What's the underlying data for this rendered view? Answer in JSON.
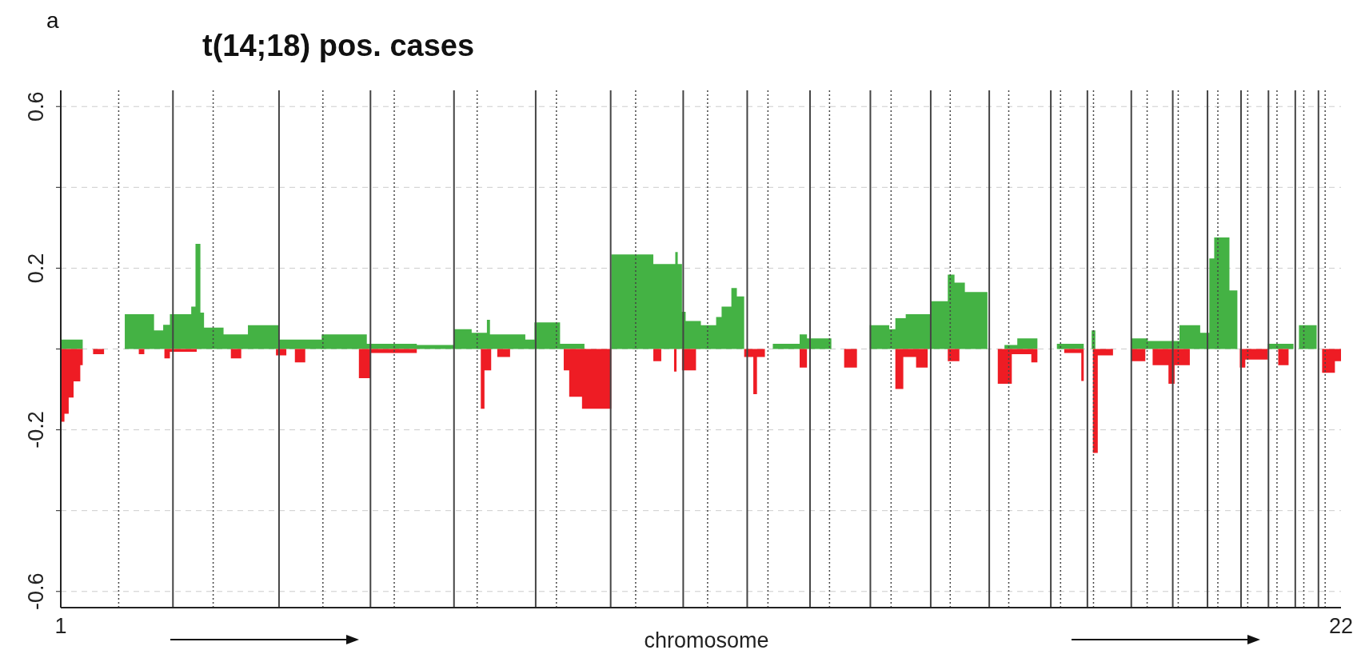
{
  "chart_data": {
    "type": "area",
    "title": "t(14;18) pos. cases",
    "xlabel": "chromosome",
    "annotations": [
      "a"
    ],
    "xlim": [
      1,
      22
    ],
    "xticks": [
      1,
      22
    ],
    "ylim": [
      -0.64,
      0.64
    ],
    "yticks": [
      {
        "value": -0.6,
        "label": "-0.6"
      },
      {
        "value": -0.4,
        "label": null
      },
      {
        "value": -0.2,
        "label": "-0.2"
      },
      {
        "value": 0,
        "label": null
      },
      {
        "value": 0.2,
        "label": "0.2"
      },
      {
        "value": 0.4,
        "label": null
      },
      {
        "value": 0.6,
        "label": "0.6"
      }
    ],
    "grid": "y",
    "series": [
      {
        "color": "#44b244",
        "x": [
          1,
          1.36,
          2.05,
          2.53,
          2.68,
          2.79,
          3.14,
          3.21,
          3.29,
          3.35,
          3.67,
          4.07,
          4.57,
          5.28,
          6.02,
          6.84,
          7.45,
          7.74,
          7.99,
          8.04,
          8.62,
          8.77,
          9.19,
          9.59,
          10.03,
          10.72,
          11.08,
          11.12,
          11.19,
          11.25,
          11.5,
          11.75,
          11.84,
          12.0,
          12.09,
          12.21,
          12.68,
          13.12,
          13.24,
          13.64,
          14.27,
          14.59,
          14.69,
          14.86,
          15.26,
          15.55,
          15.66,
          15.83,
          16.2,
          16.48,
          16.69,
          17.02,
          17.34,
          17.78,
          17.91,
          17.97,
          18.56,
          18.83,
          19.35,
          19.69,
          19.84,
          19.92,
          20.17,
          20.3,
          20.8,
          21.22,
          21.31,
          21.6,
          22
        ],
        "values": [
          0.023,
          0,
          0.086,
          0.046,
          0.06,
          0.086,
          0.105,
          0.26,
          0.09,
          0.053,
          0.036,
          0.059,
          0.023,
          0.036,
          0.013,
          0.01,
          0.049,
          0.04,
          0.072,
          0.036,
          0.023,
          0.066,
          0.013,
          0,
          0.234,
          0.21,
          0.24,
          0.21,
          0.092,
          0.069,
          0.059,
          0.079,
          0.105,
          0.151,
          0.13,
          0,
          0.013,
          0.036,
          0.026,
          0,
          0.059,
          0.049,
          0.076,
          0.086,
          0.118,
          0.184,
          0.164,
          0.141,
          0,
          0.01,
          0.026,
          0,
          0.013,
          0,
          0.046,
          0,
          0.026,
          0.02,
          0.059,
          0.04,
          0.224,
          0.276,
          0.145,
          0,
          0.013,
          0,
          0.059,
          0,
          0
        ]
      },
      {
        "color": "#ee1c24",
        "x": [
          1,
          1.06,
          1.13,
          1.21,
          1.32,
          1.36,
          1.53,
          1.71,
          2.28,
          2.37,
          2.7,
          2.79,
          3.23,
          3.79,
          3.96,
          4.53,
          4.7,
          4.84,
          5.01,
          5.89,
          6.08,
          6.84,
          7.89,
          7.95,
          8.06,
          8.16,
          8.37,
          9.25,
          9.34,
          9.55,
          10.03,
          10.72,
          10.85,
          11.06,
          11.1,
          11.19,
          11.42,
          12.21,
          12.36,
          12.42,
          12.55,
          13.12,
          13.24,
          13.85,
          14.06,
          14.69,
          14.82,
          15.03,
          15.22,
          15.55,
          15.74,
          16.37,
          16.6,
          16.92,
          17.02,
          17.46,
          17.74,
          17.78,
          17.93,
          18.01,
          18.26,
          18.56,
          18.79,
          18.91,
          19.17,
          19.27,
          19.52,
          20.34,
          20.43,
          20.8,
          20.97,
          21.14,
          21.69,
          21.9,
          22
        ],
        "values": [
          -0.18,
          -0.16,
          -0.12,
          -0.08,
          -0.04,
          0,
          -0.013,
          0,
          -0.013,
          0,
          -0.023,
          -0.007,
          0,
          -0.023,
          0,
          -0.016,
          0,
          -0.033,
          0,
          -0.072,
          -0.01,
          0,
          -0.148,
          -0.053,
          0,
          -0.02,
          0,
          -0.053,
          -0.118,
          -0.148,
          0,
          -0.03,
          0,
          -0.056,
          0,
          -0.053,
          0,
          -0.02,
          -0.112,
          -0.02,
          0,
          -0.046,
          0,
          -0.046,
          0,
          -0.099,
          -0.02,
          -0.046,
          0,
          -0.03,
          0,
          -0.086,
          -0.013,
          -0.033,
          0,
          -0.01,
          -0.079,
          0,
          -0.257,
          -0.016,
          0,
          -0.03,
          0,
          -0.04,
          -0.086,
          -0.04,
          0,
          -0.046,
          -0.026,
          0,
          -0.04,
          0,
          -0.059,
          -0.03,
          0
        ]
      }
    ],
    "ref_lines": [
      {
        "axis": "x",
        "value": 2.84,
        "color": "#444444",
        "line_style": "solid"
      },
      {
        "axis": "x",
        "value": 4.58,
        "color": "#444444",
        "line_style": "solid"
      },
      {
        "axis": "x",
        "value": 6.08,
        "color": "#444444",
        "line_style": "solid"
      },
      {
        "axis": "x",
        "value": 7.45,
        "color": "#444444",
        "line_style": "solid"
      },
      {
        "axis": "x",
        "value": 8.79,
        "color": "#444444",
        "line_style": "solid"
      },
      {
        "axis": "x",
        "value": 10.02,
        "color": "#444444",
        "line_style": "solid"
      },
      {
        "axis": "x",
        "value": 11.21,
        "color": "#444444",
        "line_style": "solid"
      },
      {
        "axis": "x",
        "value": 12.26,
        "color": "#444444",
        "line_style": "solid"
      },
      {
        "axis": "x",
        "value": 13.29,
        "color": "#444444",
        "line_style": "solid"
      },
      {
        "axis": "x",
        "value": 14.28,
        "color": "#444444",
        "line_style": "solid"
      },
      {
        "axis": "x",
        "value": 15.27,
        "color": "#444444",
        "line_style": "solid"
      },
      {
        "axis": "x",
        "value": 16.23,
        "color": "#444444",
        "line_style": "solid"
      },
      {
        "axis": "x",
        "value": 17.24,
        "color": "#444444",
        "line_style": "solid"
      },
      {
        "axis": "x",
        "value": 17.84,
        "color": "#444444",
        "line_style": "solid"
      },
      {
        "axis": "x",
        "value": 18.56,
        "color": "#444444",
        "line_style": "solid"
      },
      {
        "axis": "x",
        "value": 19.24,
        "color": "#444444",
        "line_style": "solid"
      },
      {
        "axis": "x",
        "value": 19.81,
        "color": "#444444",
        "line_style": "solid"
      },
      {
        "axis": "x",
        "value": 20.36,
        "color": "#444444",
        "line_style": "solid"
      },
      {
        "axis": "x",
        "value": 20.81,
        "color": "#444444",
        "line_style": "solid"
      },
      {
        "axis": "x",
        "value": 21.25,
        "color": "#444444",
        "line_style": "solid"
      },
      {
        "axis": "x",
        "value": 21.63,
        "color": "#444444",
        "line_style": "solid"
      },
      {
        "axis": "x",
        "value": 1.95,
        "color": "#444444",
        "line_style": "dotted"
      },
      {
        "axis": "x",
        "value": 3.5,
        "color": "#444444",
        "line_style": "dotted"
      },
      {
        "axis": "x",
        "value": 5.3,
        "color": "#444444",
        "line_style": "dotted"
      },
      {
        "axis": "x",
        "value": 6.47,
        "color": "#444444",
        "line_style": "dotted"
      },
      {
        "axis": "x",
        "value": 7.83,
        "color": "#444444",
        "line_style": "dotted"
      },
      {
        "axis": "x",
        "value": 9.13,
        "color": "#444444",
        "line_style": "dotted"
      },
      {
        "axis": "x",
        "value": 10.43,
        "color": "#444444",
        "line_style": "dotted"
      },
      {
        "axis": "x",
        "value": 11.61,
        "color": "#444444",
        "line_style": "dotted"
      },
      {
        "axis": "x",
        "value": 12.6,
        "color": "#444444",
        "line_style": "dotted"
      },
      {
        "axis": "x",
        "value": 13.61,
        "color": "#444444",
        "line_style": "dotted"
      },
      {
        "axis": "x",
        "value": 14.62,
        "color": "#444444",
        "line_style": "dotted"
      },
      {
        "axis": "x",
        "value": 15.59,
        "color": "#444444",
        "line_style": "dotted"
      },
      {
        "axis": "x",
        "value": 16.55,
        "color": "#444444",
        "line_style": "dotted"
      },
      {
        "axis": "x",
        "value": 17.4,
        "color": "#444444",
        "line_style": "dotted"
      },
      {
        "axis": "x",
        "value": 17.94,
        "color": "#444444",
        "line_style": "dotted"
      },
      {
        "axis": "x",
        "value": 18.82,
        "color": "#444444",
        "line_style": "dotted"
      },
      {
        "axis": "x",
        "value": 19.33,
        "color": "#444444",
        "line_style": "dotted"
      },
      {
        "axis": "x",
        "value": 19.98,
        "color": "#444444",
        "line_style": "dotted"
      },
      {
        "axis": "x",
        "value": 20.47,
        "color": "#444444",
        "line_style": "dotted"
      },
      {
        "axis": "x",
        "value": 20.95,
        "color": "#444444",
        "line_style": "dotted"
      },
      {
        "axis": "x",
        "value": 21.39,
        "color": "#444444",
        "line_style": "dotted"
      },
      {
        "axis": "x",
        "value": 21.74,
        "color": "#444444",
        "line_style": "dotted"
      }
    ]
  }
}
